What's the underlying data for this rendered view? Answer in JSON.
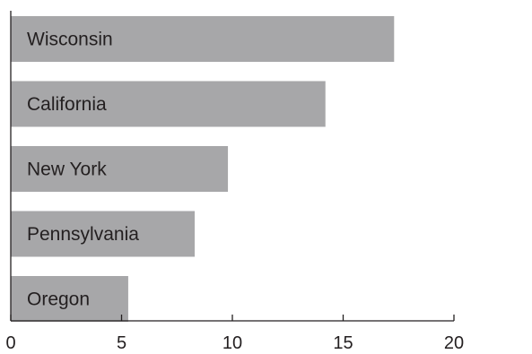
{
  "chart_data": {
    "type": "bar",
    "orientation": "horizontal",
    "categories": [
      "Wisconsin",
      "California",
      "New York",
      "Pennsylvania",
      "Oregon"
    ],
    "values": [
      17.3,
      14.2,
      9.8,
      8.3,
      5.3
    ],
    "xlim": [
      0,
      20
    ],
    "x_ticks": [
      0,
      5,
      10,
      15,
      20
    ],
    "x_tick_labels": [
      "0",
      "5",
      "10",
      "15",
      "20"
    ],
    "grid": false,
    "bar_color": "#a7a7a9",
    "labels_inside_bars": true
  }
}
